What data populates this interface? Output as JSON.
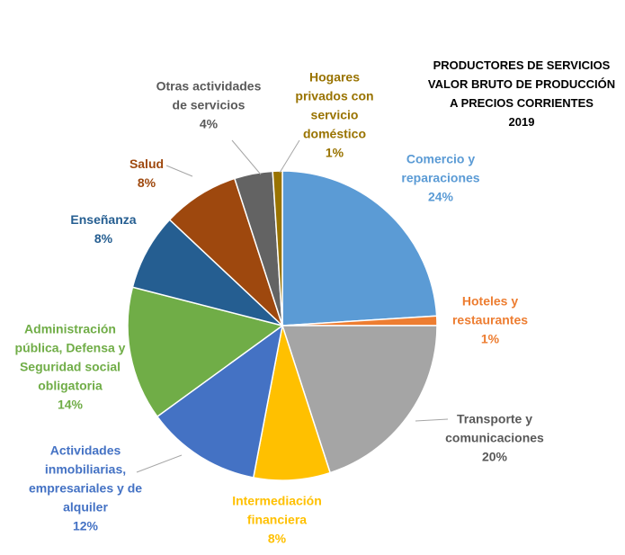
{
  "chart_data": {
    "type": "pie",
    "title": [
      "PRODUCTORES DE SERVICIOS",
      "VALOR BRUTO DE PRODUCCIÓN",
      "A PRECIOS CORRIENTES",
      "2019"
    ],
    "categories": [
      "Comercio y reparaciones",
      "Hoteles y restaurantes",
      "Transporte y comunicaciones",
      "Intermediación financiera",
      "Actividades inmobiliarias, empresariales y de alquiler",
      "Administración pública, Defensa y Seguridad social obligatoria",
      "Enseñanza",
      "Salud",
      "Otras actividades de servicios",
      "Hogares privados con servicio doméstico"
    ],
    "values": [
      24,
      1,
      20,
      8,
      12,
      14,
      8,
      8,
      4,
      1
    ],
    "value_labels": [
      "24%",
      "1%",
      "20%",
      "8%",
      "12%",
      "14%",
      "8%",
      "8%",
      "4%",
      "1%"
    ],
    "colors": [
      "#5b9bd5",
      "#ed7d31",
      "#a5a5a5",
      "#ffc000",
      "#4472c4",
      "#70ad47",
      "#255e91",
      "#9e480e",
      "#636363",
      "#997300"
    ]
  }
}
